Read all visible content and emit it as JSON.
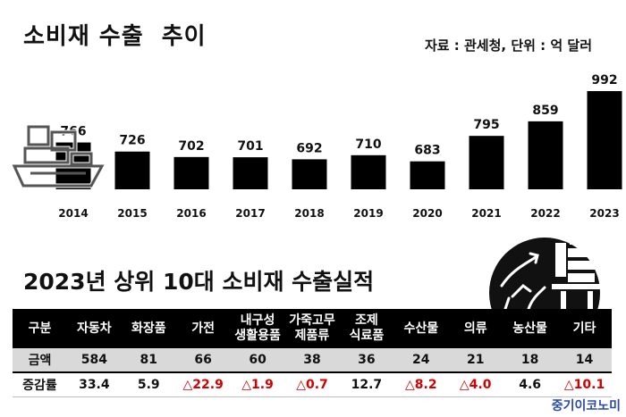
{
  "header": {
    "title": "소비재 수출  추이",
    "source": "자료 : 관세청, 단위 : 억 달러"
  },
  "chart_data": {
    "type": "bar",
    "title": "소비재 수출  추이",
    "categories": [
      "2014",
      "2015",
      "2016",
      "2017",
      "2018",
      "2019",
      "2020",
      "2021",
      "2022",
      "2023"
    ],
    "values": [
      766,
      726,
      702,
      701,
      692,
      710,
      683,
      795,
      859,
      992
    ],
    "ylim": [
      560,
      1000
    ],
    "grid": false,
    "bar_color": "#000000"
  },
  "section2": {
    "title": "2023년 상위 10대 소비재 수출실적"
  },
  "table": {
    "headers": [
      "구분",
      "자동차",
      "화장품",
      "가전",
      "내구성\n생활용품",
      "가죽고무\n제품류",
      "조제\n식료품",
      "수산물",
      "의류",
      "농산물",
      "기타"
    ],
    "rows": [
      {
        "label": "금액",
        "cells": [
          "584",
          "81",
          "66",
          "60",
          "38",
          "36",
          "24",
          "21",
          "18",
          "14"
        ]
      },
      {
        "label": "증감률",
        "cells": [
          "33.4",
          "5.9",
          "△22.9",
          "△1.9",
          "△0.7",
          "12.7",
          "△8.2",
          "△4.0",
          "4.6",
          "△10.1"
        ]
      }
    ],
    "negative_color": "#d40000"
  },
  "footer": {
    "brand": "중기이코노미"
  }
}
